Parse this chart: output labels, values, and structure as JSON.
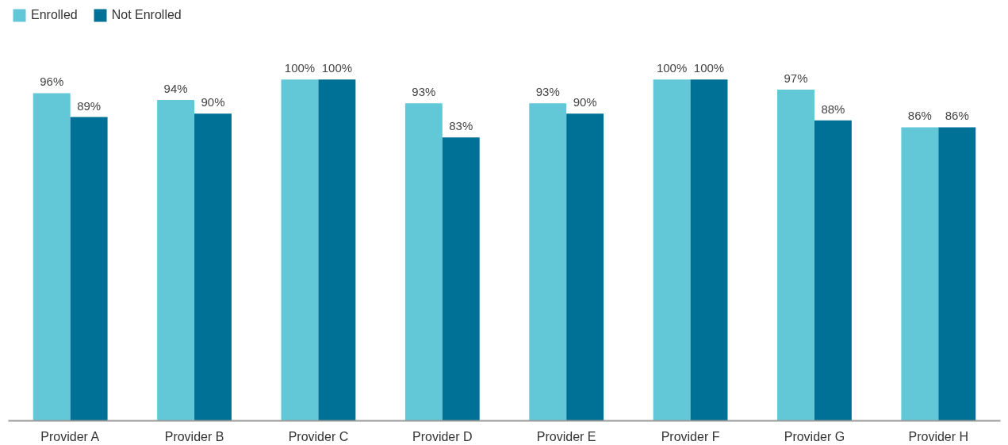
{
  "chart_data": {
    "type": "bar",
    "categories": [
      "Provider A",
      "Provider B",
      "Provider C",
      "Provider D",
      "Provider E",
      "Provider F",
      "Provider G",
      "Provider H"
    ],
    "series": [
      {
        "name": "Enrolled",
        "color": "#62c8d8",
        "values": [
          96,
          94,
          100,
          93,
          93,
          100,
          97,
          86
        ],
        "value_labels": [
          "96%",
          "94%",
          "100%",
          "93%",
          "93%",
          "100%",
          "97%",
          "86%"
        ]
      },
      {
        "name": "Not Enrolled",
        "color": "#007196",
        "values": [
          89,
          90,
          100,
          83,
          90,
          100,
          88,
          86
        ],
        "value_labels": [
          "89%",
          "90%",
          "100%",
          "83%",
          "90%",
          "100%",
          "88%",
          "86%"
        ]
      }
    ],
    "tick_labels": "x",
    "grid": false,
    "legend": "top left"
  }
}
